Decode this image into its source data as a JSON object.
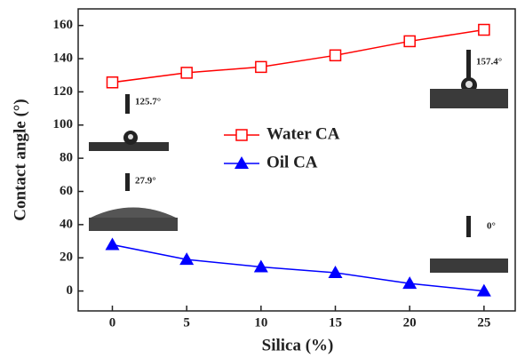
{
  "chart_data": {
    "type": "line",
    "xlabel": "Silica (%)",
    "ylabel": "Contact angle (°)",
    "x": [
      0,
      5,
      10,
      15,
      20,
      25
    ],
    "series": [
      {
        "name": "Water CA",
        "color": "#ff0000",
        "marker": "square-open",
        "values": [
          125.7,
          131.5,
          135,
          142,
          150.5,
          157.4
        ]
      },
      {
        "name": "Oil CA",
        "color": "#0000ff",
        "marker": "triangle",
        "values": [
          27.9,
          19,
          14.5,
          11,
          4.5,
          0
        ]
      }
    ],
    "xlim": [
      -2.3,
      27.1
    ],
    "ylim": [
      -12,
      170
    ],
    "xticks": [
      0,
      5,
      10,
      15,
      20,
      25
    ],
    "yticks": [
      0,
      20,
      40,
      60,
      80,
      100,
      120,
      140,
      160
    ],
    "annotations": [
      "125.7°",
      "27.9°",
      "157.4°",
      "0°"
    ]
  }
}
